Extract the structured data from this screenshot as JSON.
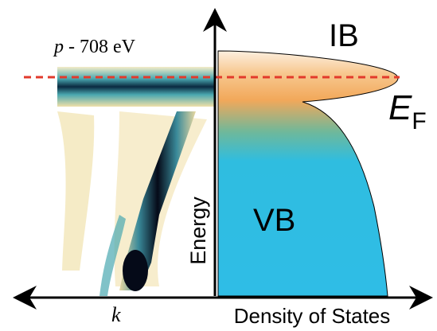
{
  "panel_label": {
    "variable": "p",
    "text": " - 708 eV"
  },
  "band_ib": "IB",
  "band_vb": "VB",
  "fermi_level": {
    "symbol": "E",
    "subscript": "F"
  },
  "y_axis_label": "Energy",
  "x_axis_left_label": "k",
  "x_axis_right_label": "Density of States"
}
